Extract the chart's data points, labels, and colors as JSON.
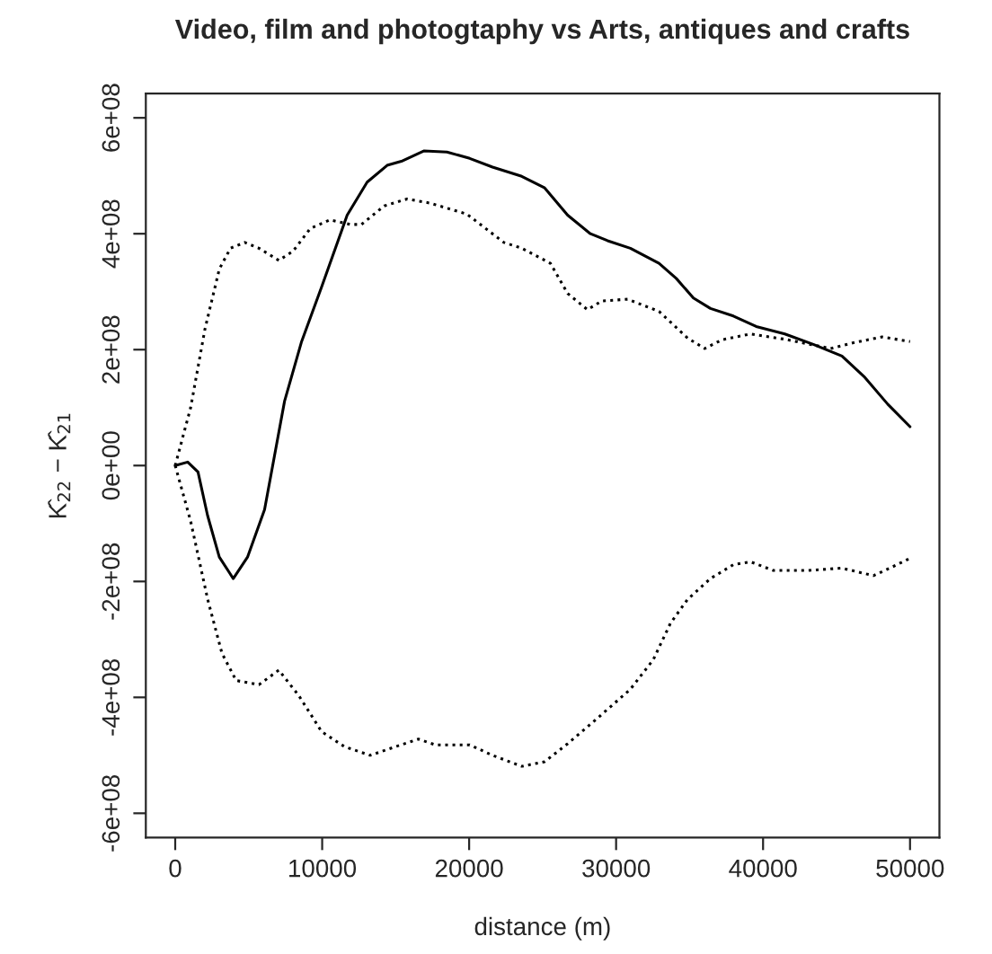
{
  "chart_data": {
    "type": "line",
    "title": "Video, film and photogtaphy vs Arts, antiques and crafts",
    "xlabel": "distance (m)",
    "ylabel": "K̂$_{22}$ − K̂$_{21}$",
    "series": [
      {
        "color": "#000000",
        "line_style": "solid",
        "x": [
          0,
          850,
          1550,
          2200,
          3000,
          3950,
          4920,
          6080,
          7440,
          8600,
          9960,
          11700,
          13060,
          14420,
          15390,
          16940,
          18490,
          20040,
          21590,
          23580,
          25140,
          26700,
          28250,
          29420,
          30970,
          32920,
          34090,
          35260,
          36420,
          37980,
          39530,
          41480,
          43420,
          45370,
          46930,
          48480,
          50000
        ],
        "values": [
          0,
          6000000,
          -11000000,
          -86000000,
          -158000000,
          -195000000,
          -158000000,
          -76000000,
          111000000,
          214000000,
          308000000,
          432000000,
          489000000,
          518000000,
          525000000,
          543000000,
          541000000,
          530000000,
          515000000,
          499000000,
          479000000,
          432000000,
          400000000,
          388000000,
          375000000,
          349000000,
          323000000,
          289000000,
          271000000,
          258000000,
          240000000,
          227000000,
          209000000,
          189000000,
          152000000,
          106000000,
          67000000
        ]
      },
      {
        "color": "#000000",
        "line_style": "dotted",
        "x": [
          0,
          1050,
          2020,
          3000,
          3760,
          4730,
          5700,
          7050,
          8020,
          9190,
          10540,
          11900,
          12670,
          14220,
          15770,
          17320,
          19840,
          22360,
          23580,
          25530,
          26700,
          28050,
          29030,
          30780,
          32920,
          34860,
          36030,
          37200,
          39140,
          41480,
          44590,
          46150,
          48090,
          50000
        ],
        "values": [
          0,
          100000000,
          235000000,
          339000000,
          375000000,
          385000000,
          375000000,
          354000000,
          370000000,
          409000000,
          424000000,
          416000000,
          416000000,
          448000000,
          460000000,
          453000000,
          434000000,
          385000000,
          375000000,
          349000000,
          297000000,
          269000000,
          284000000,
          287000000,
          266000000,
          220000000,
          202000000,
          217000000,
          227000000,
          218000000,
          202000000,
          212000000,
          222000000,
          214000000
        ]
      },
      {
        "color": "#000000",
        "line_style": "dotted",
        "x": [
          0,
          1050,
          2210,
          3180,
          4150,
          5700,
          7050,
          8410,
          9960,
          11510,
          13260,
          15000,
          16550,
          17710,
          20040,
          21590,
          23580,
          25140,
          26700,
          28640,
          30970,
          32530,
          33700,
          34860,
          36420,
          37980,
          39140,
          40700,
          43030,
          45370,
          47510,
          48870,
          50000
        ],
        "values": [
          0,
          -96000000,
          -231000000,
          -324000000,
          -371000000,
          -378000000,
          -353000000,
          -397000000,
          -459000000,
          -485000000,
          -500000000,
          -485000000,
          -472000000,
          -482000000,
          -482000000,
          -500000000,
          -519000000,
          -511000000,
          -480000000,
          -438000000,
          -386000000,
          -335000000,
          -272000000,
          -231000000,
          -195000000,
          -171000000,
          -166000000,
          -181000000,
          -181000000,
          -177000000,
          -190000000,
          -174000000,
          -160000000
        ]
      }
    ],
    "xlim": [
      -2000,
      52000
    ],
    "ylim": [
      -642000000,
      642000000
    ],
    "xticks": [
      0,
      10000,
      20000,
      30000,
      40000,
      50000
    ],
    "yticks": [
      {
        "value": -600000000,
        "label": "-6e+08"
      },
      {
        "value": -400000000,
        "label": "-4e+08"
      },
      {
        "value": -200000000,
        "label": "-2e+08"
      },
      {
        "value": 0,
        "label": "0e+00"
      },
      {
        "value": 200000000,
        "label": "2e+08"
      },
      {
        "value": 400000000,
        "label": "4e+08"
      },
      {
        "value": 600000000,
        "label": "6e+08"
      }
    ],
    "grid": false,
    "legend": false
  }
}
